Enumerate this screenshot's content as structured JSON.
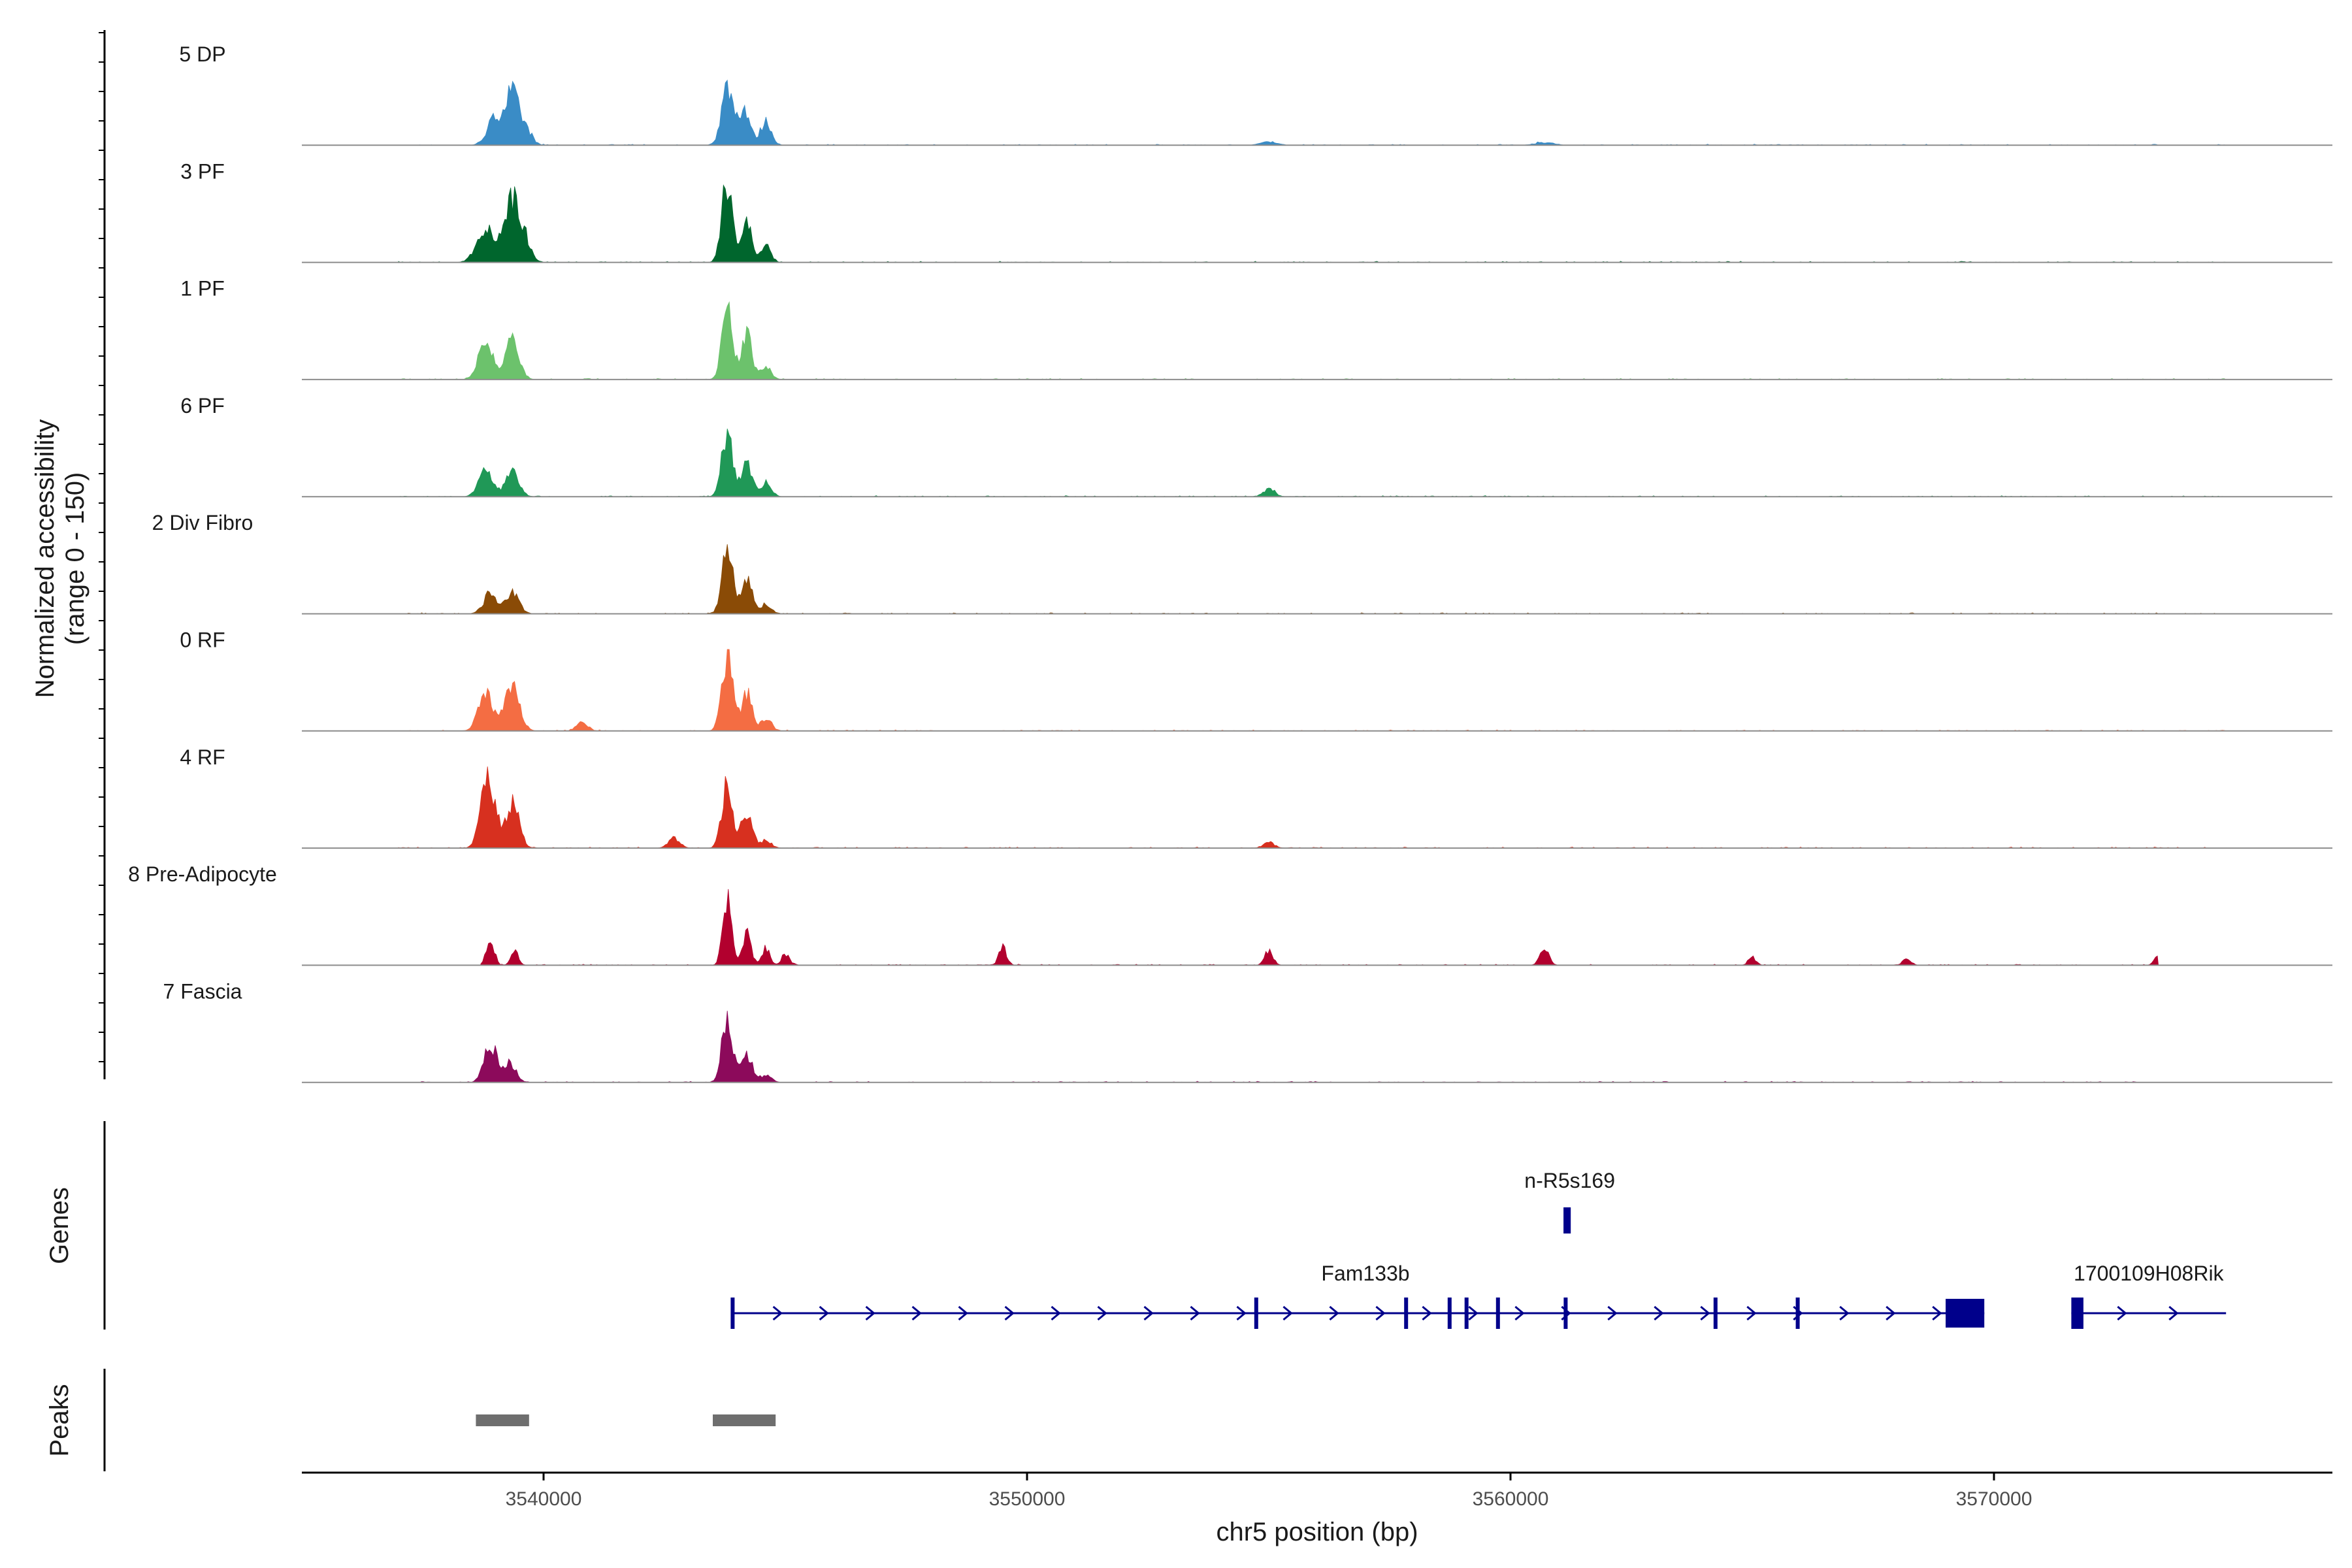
{
  "chart_data": {
    "type": "area",
    "chromosome": "chr5",
    "xlim": [
      3535000,
      3577000
    ],
    "y_axis_label_line1": "Normalized accessibility",
    "y_axis_label_line2": "(range 0 - 150)",
    "genes_label": "Genes",
    "peaks_label": "Peaks",
    "xlabel": "chr5 position (bp)",
    "x_ticks": [
      {
        "value": 3540000,
        "label": "3540000"
      },
      {
        "value": 3550000,
        "label": "3550000"
      },
      {
        "value": 3560000,
        "label": "3560000"
      },
      {
        "value": 3570000,
        "label": "3570000"
      }
    ],
    "tracks": [
      {
        "name": "5 DP",
        "color": "#3a8cc6",
        "signal_range": [
          3537000,
          3574800
        ],
        "peaks": [
          [
            3539000,
            0.42,
            160
          ],
          [
            3539350,
            0.8,
            140
          ],
          [
            3539650,
            0.22,
            120
          ],
          [
            3543800,
            0.92,
            120
          ],
          [
            3544150,
            0.58,
            120
          ],
          [
            3544600,
            0.38,
            110
          ],
          [
            3555000,
            0.06,
            160
          ],
          [
            3560700,
            0.04,
            200
          ]
        ]
      },
      {
        "name": "3 PF",
        "color": "#00662d",
        "signal_range": [
          3537000,
          3574800
        ],
        "peaks": [
          [
            3538800,
            0.55,
            180
          ],
          [
            3539350,
            1.0,
            170
          ],
          [
            3539650,
            0.22,
            120
          ],
          [
            3543800,
            1.28,
            110
          ],
          [
            3544200,
            0.62,
            110
          ],
          [
            3544600,
            0.25,
            100
          ]
        ]
      },
      {
        "name": "1 PF",
        "color": "#6cc26c",
        "signal_range": [
          3537000,
          3574800
        ],
        "peaks": [
          [
            3538800,
            0.6,
            150
          ],
          [
            3539350,
            0.6,
            140
          ],
          [
            3543800,
            1.06,
            110
          ],
          [
            3544200,
            0.7,
            110
          ],
          [
            3544600,
            0.18,
            110
          ]
        ]
      },
      {
        "name": "6 PF",
        "color": "#209857",
        "signal_range": [
          3537000,
          3574800
        ],
        "peaks": [
          [
            3538800,
            0.42,
            140
          ],
          [
            3539350,
            0.4,
            140
          ],
          [
            3543800,
            1.05,
            110
          ],
          [
            3544200,
            0.58,
            110
          ],
          [
            3544600,
            0.22,
            110
          ],
          [
            3555000,
            0.12,
            120
          ]
        ]
      },
      {
        "name": "2 Div Fibro",
        "color": "#8a4b06",
        "signal_range": [
          3537000,
          3574800
        ],
        "peaks": [
          [
            3538900,
            0.32,
            140
          ],
          [
            3539350,
            0.32,
            140
          ],
          [
            3543800,
            1.05,
            110
          ],
          [
            3544200,
            0.55,
            110
          ],
          [
            3544600,
            0.15,
            110
          ]
        ]
      },
      {
        "name": "0 RF",
        "color": "#f46d43",
        "signal_range": [
          3537000,
          3574800
        ],
        "peaks": [
          [
            3538800,
            0.6,
            150
          ],
          [
            3539350,
            0.7,
            150
          ],
          [
            3540800,
            0.12,
            120
          ],
          [
            3543800,
            1.2,
            110
          ],
          [
            3544200,
            0.6,
            110
          ],
          [
            3544600,
            0.2,
            110
          ]
        ]
      },
      {
        "name": "4 RF",
        "color": "#d7301f",
        "signal_range": [
          3537000,
          3574800
        ],
        "peaks": [
          [
            3538850,
            1.2,
            140
          ],
          [
            3539350,
            0.7,
            140
          ],
          [
            3542700,
            0.15,
            120
          ],
          [
            3543800,
            1.05,
            110
          ],
          [
            3544200,
            0.55,
            110
          ],
          [
            3544600,
            0.12,
            110
          ],
          [
            3555000,
            0.08,
            120
          ]
        ]
      },
      {
        "name": "8 Pre-Adipocyte",
        "color": "#b2002e",
        "signal_range": [
          3538700,
          3573400
        ],
        "peaks": [
          [
            3538900,
            0.42,
            80
          ],
          [
            3539400,
            0.22,
            80
          ],
          [
            3543800,
            1.1,
            90
          ],
          [
            3544200,
            0.5,
            90
          ],
          [
            3544600,
            0.28,
            80
          ],
          [
            3545000,
            0.18,
            80
          ],
          [
            3549500,
            0.28,
            80
          ],
          [
            3555000,
            0.22,
            90
          ],
          [
            3560700,
            0.28,
            90
          ],
          [
            3565000,
            0.12,
            80
          ],
          [
            3568200,
            0.12,
            80
          ],
          [
            3573400,
            0.14,
            80
          ]
        ]
      },
      {
        "name": "7 Fascia",
        "color": "#8c0a5b",
        "signal_range": [
          3537000,
          3573200
        ],
        "peaks": [
          [
            3538900,
            0.6,
            130
          ],
          [
            3539300,
            0.3,
            130
          ],
          [
            3543800,
            1.05,
            110
          ],
          [
            3544200,
            0.45,
            110
          ],
          [
            3544600,
            0.12,
            110
          ]
        ]
      }
    ],
    "genes": [
      {
        "name": "n-R5s169",
        "start": 3561150,
        "end": 3561300,
        "row": 1
      },
      {
        "name": "Fam133b",
        "start": 3543900,
        "end": 3569800,
        "row": 2,
        "exons": [
          [
            3543870,
            3543950
          ],
          [
            3554700,
            3554780
          ],
          [
            3557800,
            3557880
          ],
          [
            3558700,
            3558760
          ],
          [
            3559050,
            3559120
          ],
          [
            3559700,
            3559780
          ],
          [
            3561100,
            3561160
          ],
          [
            3564200,
            3564260
          ],
          [
            3565900,
            3565960
          ],
          [
            3569000,
            3569800
          ]
        ]
      },
      {
        "name": "1700109H08Rik",
        "start": 3571600,
        "end": 3574800,
        "row": 2,
        "exons": [
          [
            3571600,
            3571850
          ]
        ]
      }
    ],
    "peaks": [
      {
        "start": 3538600,
        "end": 3539700
      },
      {
        "start": 3543500,
        "end": 3544800
      }
    ]
  }
}
